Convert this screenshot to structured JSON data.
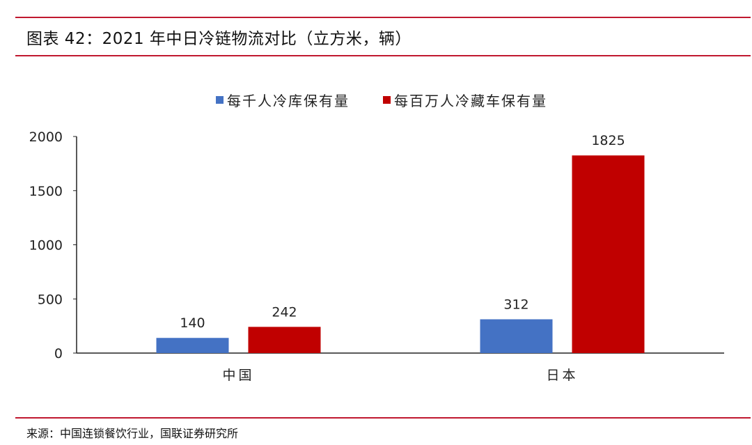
{
  "header": {
    "title": "图表 42：2021 年中日冷链物流对比（立方米，辆）"
  },
  "footer": {
    "source": "来源：中国连锁餐饮行业，国联证券研究所"
  },
  "chart_data": {
    "type": "bar",
    "categories": [
      "中国",
      "日本"
    ],
    "series": [
      {
        "name": "每千人冷库保有量",
        "values": [
          140,
          312
        ],
        "color": "#4472c4"
      },
      {
        "name": "每百万人冷藏车保有量",
        "values": [
          242,
          1825
        ],
        "color": "#c00000"
      }
    ],
    "ylim": [
      0,
      2000
    ],
    "yticks": [
      0,
      500,
      1000,
      1500,
      2000
    ],
    "grid": false,
    "legend_position": "top-center",
    "data_labels": true
  }
}
